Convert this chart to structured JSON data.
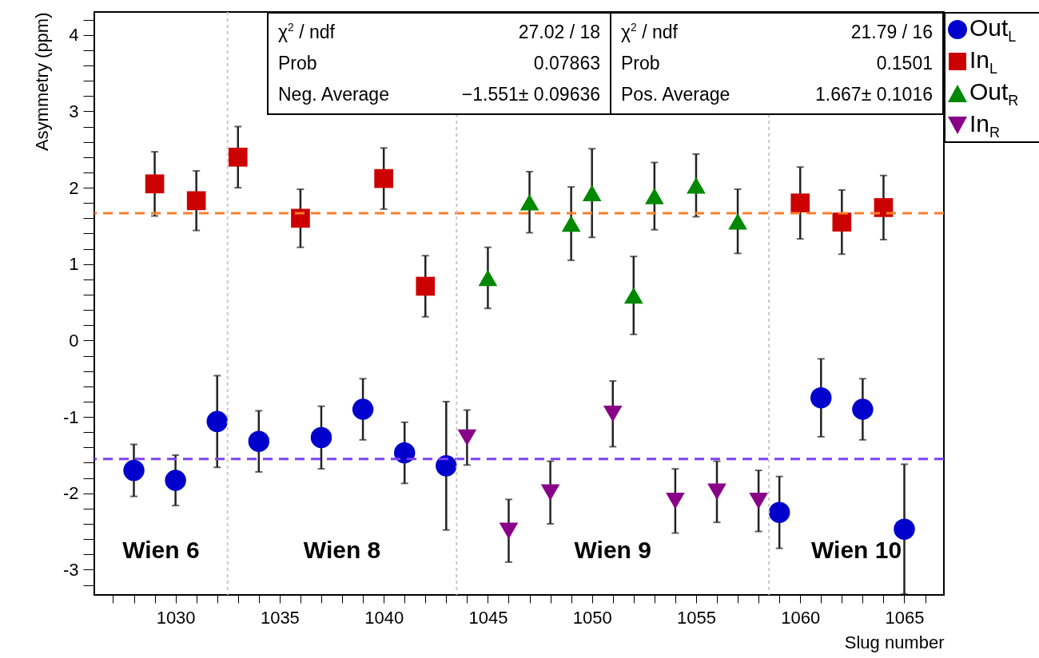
{
  "chart_data": {
    "type": "scatter",
    "xlabel": "Slug number",
    "ylabel": "Asymmetry (ppm)",
    "xlim": [
      1026.1,
      1066.9
    ],
    "ylim": [
      -3.33,
      4.3
    ],
    "xticks": [
      {
        "value": 1027,
        "label": null
      },
      {
        "value": 1028,
        "label": null
      },
      {
        "value": 1029,
        "label": null
      },
      1030,
      {
        "value": 1031,
        "label": null
      },
      {
        "value": 1032,
        "label": null
      },
      {
        "value": 1033,
        "label": null
      },
      {
        "value": 1034,
        "label": null
      },
      1035,
      {
        "value": 1036,
        "label": null
      },
      {
        "value": 1037,
        "label": null
      },
      {
        "value": 1038,
        "label": null
      },
      {
        "value": 1039,
        "label": null
      },
      1040,
      {
        "value": 1041,
        "label": null
      },
      {
        "value": 1042,
        "label": null
      },
      {
        "value": 1043,
        "label": null
      },
      {
        "value": 1044,
        "label": null
      },
      1045,
      {
        "value": 1046,
        "label": null
      },
      {
        "value": 1047,
        "label": null
      },
      {
        "value": 1048,
        "label": null
      },
      {
        "value": 1049,
        "label": null
      },
      1050,
      {
        "value": 1051,
        "label": null
      },
      {
        "value": 1052,
        "label": null
      },
      {
        "value": 1053,
        "label": null
      },
      {
        "value": 1054,
        "label": null
      },
      1055,
      {
        "value": 1056,
        "label": null
      },
      {
        "value": 1057,
        "label": null
      },
      {
        "value": 1058,
        "label": null
      },
      {
        "value": 1059,
        "label": null
      },
      1060,
      {
        "value": 1061,
        "label": null
      },
      {
        "value": 1062,
        "label": null
      },
      {
        "value": 1063,
        "label": null
      },
      {
        "value": 1064,
        "label": null
      },
      1065,
      {
        "value": 1066,
        "label": null
      }
    ],
    "yticks": [
      {
        "value": -3.2,
        "label": null
      },
      -3,
      {
        "value": -2.8,
        "label": null
      },
      {
        "value": -2.6,
        "label": null
      },
      {
        "value": -2.4,
        "label": null
      },
      {
        "value": -2.2,
        "label": null
      },
      -2,
      {
        "value": -1.8,
        "label": null
      },
      {
        "value": -1.6,
        "label": null
      },
      {
        "value": -1.4,
        "label": null
      },
      {
        "value": -1.2,
        "label": null
      },
      -1,
      {
        "value": -0.8,
        "label": null
      },
      {
        "value": -0.6,
        "label": null
      },
      {
        "value": -0.4,
        "label": null
      },
      {
        "value": -0.2,
        "label": null
      },
      0,
      {
        "value": 0.2,
        "label": null
      },
      {
        "value": 0.4,
        "label": null
      },
      {
        "value": 0.6,
        "label": null
      },
      {
        "value": 0.8,
        "label": null
      },
      1,
      {
        "value": 1.2,
        "label": null
      },
      {
        "value": 1.4,
        "label": null
      },
      {
        "value": 1.6,
        "label": null
      },
      {
        "value": 1.8,
        "label": null
      },
      2,
      {
        "value": 2.2,
        "label": null
      },
      {
        "value": 2.4,
        "label": null
      },
      {
        "value": 2.6,
        "label": null
      },
      {
        "value": 2.8,
        "label": null
      },
      3,
      {
        "value": 3.2,
        "label": null
      },
      {
        "value": 3.4,
        "label": null
      },
      {
        "value": 3.6,
        "label": null
      },
      {
        "value": 3.8,
        "label": null
      },
      4,
      {
        "value": 4.2,
        "label": null
      }
    ],
    "legend": "top right",
    "series": [
      {
        "name": "Out$_{L}$",
        "color": "#0000cc",
        "marker": "circle",
        "x": [
          1028,
          1030,
          1032,
          1034,
          1037,
          1039,
          1041,
          1043,
          1059,
          1061,
          1063,
          1065
        ],
        "values": [
          -1.7,
          -1.83,
          -1.06,
          -1.32,
          -1.27,
          -0.9,
          -1.47,
          -1.64,
          -2.25,
          -0.75,
          -0.9,
          -2.47
        ],
        "errors": [
          0.34,
          0.33,
          0.6,
          0.4,
          0.41,
          0.4,
          0.4,
          0.84,
          0.47,
          0.51,
          0.4,
          0.85
        ]
      },
      {
        "name": "In$_{L}$",
        "color": "#cc0000",
        "marker": "square",
        "x": [
          1029,
          1031,
          1033,
          1036,
          1040,
          1042,
          1060,
          1062,
          1064
        ],
        "values": [
          2.05,
          1.83,
          2.4,
          1.6,
          2.12,
          0.71,
          1.8,
          1.55,
          1.74
        ],
        "errors": [
          0.42,
          0.39,
          0.4,
          0.38,
          0.4,
          0.4,
          0.47,
          0.42,
          0.42
        ]
      },
      {
        "name": "Out$_{R}$",
        "color": "#008800",
        "marker": "triangle",
        "x": [
          1045,
          1047,
          1049,
          1050,
          1052,
          1053,
          1055,
          1057
        ],
        "values": [
          0.82,
          1.81,
          1.53,
          1.93,
          0.59,
          1.89,
          2.03,
          1.56
        ],
        "errors": [
          0.4,
          0.4,
          0.48,
          0.58,
          0.51,
          0.44,
          0.41,
          0.42
        ]
      },
      {
        "name": "In$_{R}$",
        "color": "#880088",
        "marker": "triangle-down",
        "x": [
          1044,
          1046,
          1048,
          1051,
          1054,
          1056,
          1058
        ],
        "values": [
          -1.27,
          -2.49,
          -1.99,
          -0.96,
          -2.1,
          -1.98,
          -2.1
        ],
        "errors": [
          0.36,
          0.41,
          0.41,
          0.43,
          0.42,
          0.4,
          0.4
        ]
      }
    ],
    "ref_lines": [
      {
        "axis": "y",
        "value": 1.667,
        "color": "#ff7f2a",
        "line_style": "dashed"
      },
      {
        "axis": "y",
        "value": -1.551,
        "color": "#7f3fff",
        "line_style": "dashed"
      },
      {
        "axis": "x",
        "value": 1032.5,
        "color": "#c8c8c8",
        "line_style": "dotted"
      },
      {
        "axis": "x",
        "value": 1043.5,
        "color": "#c8c8c8",
        "line_style": "dotted"
      },
      {
        "axis": "x",
        "value": 1058.5,
        "color": "#c8c8c8",
        "line_style": "dotted"
      }
    ],
    "annotations": [
      "χ$^{2}$ / ndf",
      "27.02 / 18",
      "Prob",
      "0.07863",
      "Neg. Average",
      "−1.551± 0.09636",
      "χ$^{2}$ / ndf",
      "21.79 / 16",
      "Prob",
      "0.1501",
      "Pos. Average",
      "1.667± 0.1016",
      "Wien 6",
      "Wien 8",
      "Wien 9",
      "Wien 10"
    ]
  }
}
